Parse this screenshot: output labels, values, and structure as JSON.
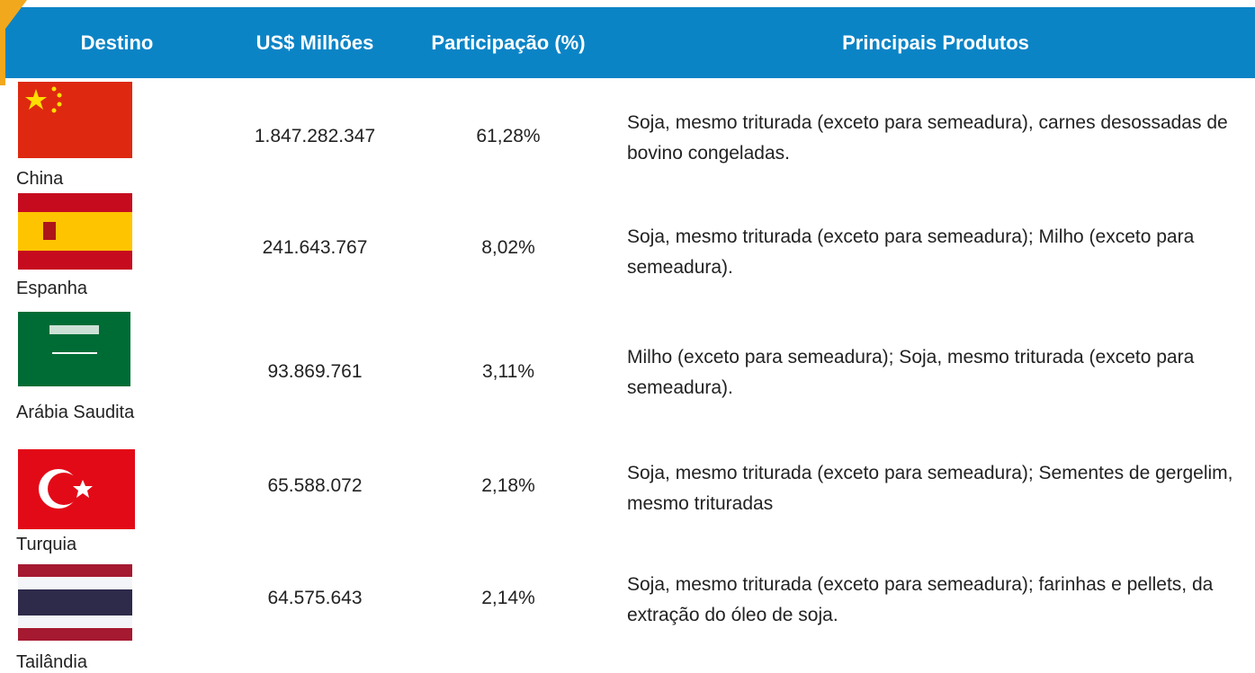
{
  "table": {
    "header": [
      "Destino",
      "US$ Milhões",
      "Participação (%)",
      "Principais Produtos"
    ],
    "rows": [
      [
        "China",
        "1.847.282.347",
        "61,28%",
        "Soja, mesmo triturada (exceto para semeadura), carnes desossadas de bovino congeladas."
      ],
      [
        "Espanha",
        "241.643.767",
        "8,02%",
        "Soja, mesmo triturada (exceto para semeadura); Milho (exceto para semeadura)."
      ],
      [
        "Arábia Saudita",
        "93.869.761",
        "3,11%",
        "Milho (exceto para semeadura); Soja, mesmo triturada (exceto para semeadura)."
      ],
      [
        "Turquia",
        "65.588.072",
        "2,18%",
        "Soja, mesmo triturada (exceto para semeadura); Sementes de gergelim, mesmo trituradas"
      ],
      [
        "Tailândia",
        "64.575.643",
        "2,14%",
        "Soja, mesmo triturada (exceto para semeadura); farinhas e pellets, da extração do óleo de soja."
      ]
    ]
  }
}
